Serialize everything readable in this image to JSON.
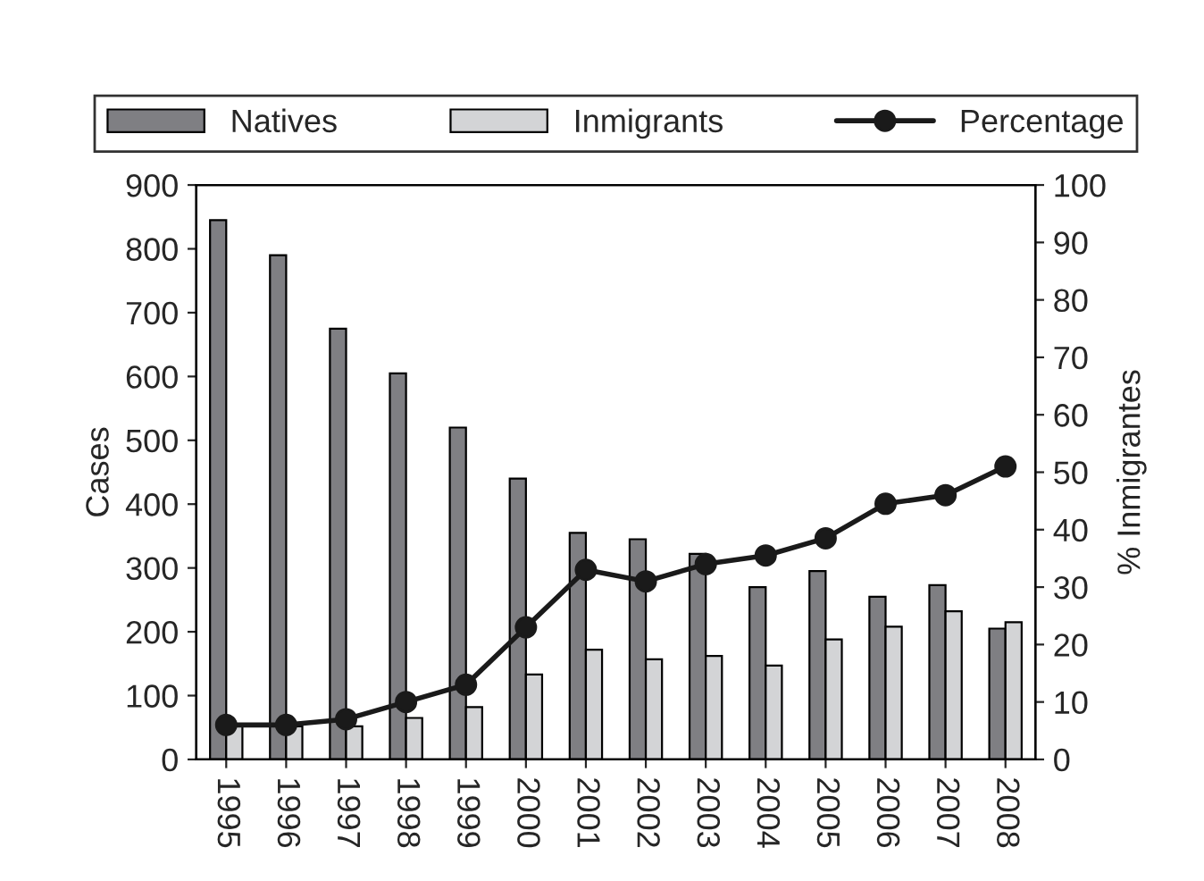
{
  "chart_data": {
    "type": "bar",
    "xlabel": null,
    "ylabel": "Cases",
    "y2label": "% Inmigrantes",
    "categories": [
      "1995",
      "1996",
      "1997",
      "1998",
      "1999",
      "2000",
      "2001",
      "2002",
      "2003",
      "2004",
      "2005",
      "2006",
      "2007",
      "2008"
    ],
    "series": [
      {
        "name": "Natives",
        "color": "#7f7f83",
        "values": [
          845,
          790,
          675,
          605,
          520,
          440,
          355,
          345,
          322,
          270,
          295,
          255,
          273,
          205
        ]
      },
      {
        "name": "Inmigrants",
        "color": "#d3d4d6",
        "values": [
          55,
          52,
          52,
          65,
          82,
          133,
          172,
          157,
          162,
          147,
          188,
          208,
          232,
          215
        ]
      },
      {
        "name": "Percentage",
        "type": "line",
        "axis": "y2",
        "color": "#1a1a1a",
        "marker": "circle",
        "values": [
          6,
          6,
          7,
          10,
          13,
          23,
          33,
          31,
          34,
          35.5,
          38.5,
          44.5,
          46,
          51
        ]
      }
    ],
    "ylim": [
      0,
      900
    ],
    "yticks": [
      0,
      100,
      200,
      300,
      400,
      500,
      600,
      700,
      800,
      900
    ],
    "y2lim": [
      0,
      100
    ],
    "y2ticks": [
      0,
      10,
      20,
      30,
      40,
      50,
      60,
      70,
      80,
      90,
      100
    ],
    "legend": "top",
    "grid": false
  }
}
